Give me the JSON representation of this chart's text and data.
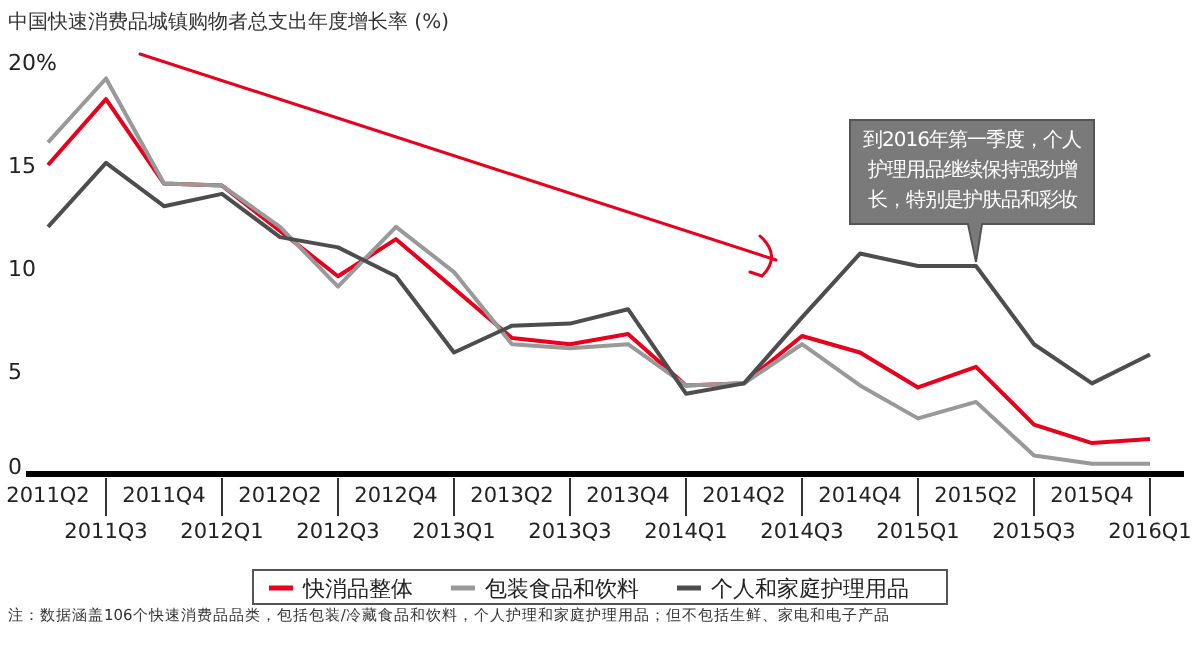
{
  "chart_data": {
    "type": "line",
    "title": "中国快速消费品城镇购物者总支出年度增长率 (%)",
    "categories": [
      "2011Q2",
      "2011Q3",
      "2011Q4",
      "2012Q1",
      "2012Q2",
      "2012Q3",
      "2012Q4",
      "2013Q1",
      "2013Q2",
      "2013Q3",
      "2013Q4",
      "2014Q1",
      "2014Q2",
      "2014Q3",
      "2014Q4",
      "2015Q1",
      "2015Q2",
      "2015Q3",
      "2015Q4",
      "2016Q1"
    ],
    "series": [
      {
        "name": "快消品整体",
        "color": "#e8001c",
        "values": [
          15.0,
          18.2,
          14.1,
          14.0,
          11.8,
          9.6,
          11.4,
          9.0,
          6.6,
          6.3,
          6.8,
          4.3,
          4.4,
          6.7,
          5.9,
          4.2,
          5.2,
          2.4,
          1.5,
          1.7
        ]
      },
      {
        "name": "包装食品和饮料",
        "color": "#999999",
        "values": [
          16.1,
          19.2,
          14.1,
          14.0,
          12.0,
          9.1,
          12.0,
          9.8,
          6.3,
          6.1,
          6.3,
          4.3,
          4.4,
          6.3,
          4.3,
          2.7,
          3.5,
          0.9,
          0.5,
          0.5
        ]
      },
      {
        "name": "个人和家庭护理用品",
        "color": "#4d4d4d",
        "values": [
          12.0,
          15.1,
          13.0,
          13.6,
          11.5,
          11.0,
          9.6,
          5.9,
          7.2,
          7.3,
          8.0,
          3.9,
          4.4,
          7.6,
          10.7,
          10.1,
          10.1,
          6.3,
          4.4,
          5.8
        ]
      }
    ],
    "ylim": [
      0,
      20
    ],
    "yticks": [
      0,
      5,
      10,
      15,
      {
        "value": 20,
        "label": "20%"
      }
    ],
    "legend": "bottom",
    "annotations": [
      {
        "text": "到2016年第一季度，个人护理用品继续保持强劲增长，特别是护肤品和彩妆",
        "x": "2015Q2",
        "y": 10.1
      },
      "注：数据涵盖106个快速消费品品类，包括包装/冷藏食品和饮料，个人护理和家庭护理用品；但不包括生鲜、家电和电子产品"
    ]
  }
}
